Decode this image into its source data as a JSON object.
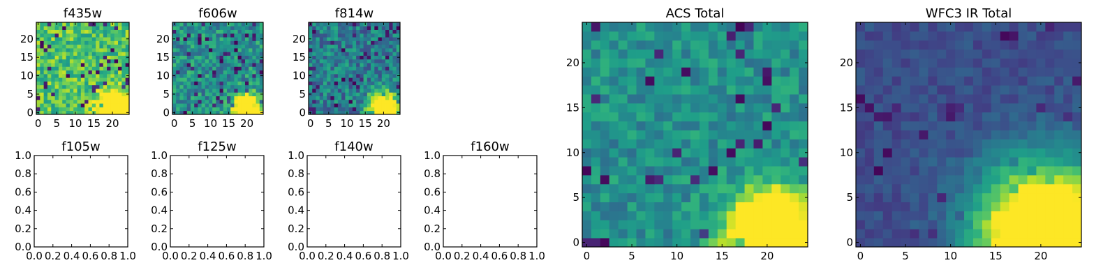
{
  "figure": {
    "colormap": "viridis",
    "image_size": 25
  },
  "chart_data": [
    {
      "type": "heatmap",
      "title": "f435w",
      "xticks": [
        "0",
        "5",
        "10",
        "15",
        "20"
      ],
      "yticks": [
        "0",
        "5",
        "10",
        "15",
        "20"
      ],
      "xlim": [
        -0.5,
        24.5
      ],
      "ylim": [
        -0.5,
        24.5
      ],
      "pattern": {
        "base": 0.72,
        "noise": 0.2,
        "dark_prob": 0.06,
        "source_center": [
          20.5,
          1
        ],
        "source_radius": 2.8,
        "seed": 3
      }
    },
    {
      "type": "heatmap",
      "title": "f606w",
      "xticks": [
        "0",
        "5",
        "10",
        "15",
        "20"
      ],
      "yticks": [
        "0",
        "5",
        "10",
        "15",
        "20"
      ],
      "xlim": [
        -0.5,
        24.5
      ],
      "ylim": [
        -0.5,
        24.5
      ],
      "pattern": {
        "base": 0.5,
        "noise": 0.2,
        "dark_prob": 0.07,
        "source_center": [
          20,
          1
        ],
        "source_radius": 2.5,
        "seed": 7
      }
    },
    {
      "type": "heatmap",
      "title": "f814w",
      "xticks": [
        "0",
        "5",
        "10",
        "15",
        "20"
      ],
      "yticks": [
        "0",
        "5",
        "10",
        "15",
        "20"
      ],
      "xlim": [
        -0.5,
        24.5
      ],
      "ylim": [
        -0.5,
        24.5
      ],
      "pattern": {
        "base": 0.42,
        "noise": 0.2,
        "dark_prob": 0.08,
        "source_center": [
          20,
          1.5
        ],
        "source_radius": 2.6,
        "seed": 11
      }
    },
    {
      "type": "empty",
      "title": "f105w",
      "xticks": [
        "0.0",
        "0.2",
        "0.4",
        "0.6",
        "0.8",
        "1.0"
      ],
      "yticks": [
        "0.0",
        "0.2",
        "0.4",
        "0.6",
        "0.8",
        "1.0"
      ],
      "xlim": [
        0,
        1
      ],
      "ylim": [
        0,
        1
      ]
    },
    {
      "type": "empty",
      "title": "f125w",
      "xticks": [
        "0.0",
        "0.2",
        "0.4",
        "0.6",
        "0.8",
        "1.0"
      ],
      "yticks": [
        "0.0",
        "0.2",
        "0.4",
        "0.6",
        "0.8",
        "1.0"
      ],
      "xlim": [
        0,
        1
      ],
      "ylim": [
        0,
        1
      ]
    },
    {
      "type": "empty",
      "title": "f140w",
      "xticks": [
        "0.0",
        "0.2",
        "0.4",
        "0.6",
        "0.8",
        "1.0"
      ],
      "yticks": [
        "0.0",
        "0.2",
        "0.4",
        "0.6",
        "0.8",
        "1.0"
      ],
      "xlim": [
        0,
        1
      ],
      "ylim": [
        0,
        1
      ]
    },
    {
      "type": "empty",
      "title": "f160w",
      "xticks": [
        "0.0",
        "0.2",
        "0.4",
        "0.6",
        "0.8",
        "1.0"
      ],
      "yticks": [
        "0.0",
        "0.2",
        "0.4",
        "0.6",
        "0.8",
        "1.0"
      ],
      "xlim": [
        0,
        1
      ],
      "ylim": [
        0,
        1
      ]
    },
    {
      "type": "heatmap",
      "title": "ACS Total",
      "xticks": [
        "0",
        "5",
        "10",
        "15",
        "20"
      ],
      "yticks": [
        "0",
        "5",
        "10",
        "15",
        "20"
      ],
      "xlim": [
        -0.5,
        24.5
      ],
      "ylim": [
        -0.5,
        24.5
      ],
      "pattern": {
        "base": 0.5,
        "noise": 0.14,
        "dark_prob": 0.05,
        "source_center": [
          20.5,
          1
        ],
        "source_radius": 3.2,
        "seed": 19
      }
    },
    {
      "type": "heatmap",
      "title": "WFC3 IR Total",
      "xticks": [
        "0",
        "5",
        "10",
        "15",
        "20"
      ],
      "yticks": [
        "0",
        "5",
        "10",
        "15",
        "20"
      ],
      "xlim": [
        -0.5,
        24.5
      ],
      "ylim": [
        -0.5,
        24.5
      ],
      "pattern": {
        "base": 0.24,
        "noise": 0.07,
        "dark_prob": 0.03,
        "source_center": [
          20.5,
          1
        ],
        "source_radius": 5.2,
        "seed": 23
      }
    }
  ]
}
